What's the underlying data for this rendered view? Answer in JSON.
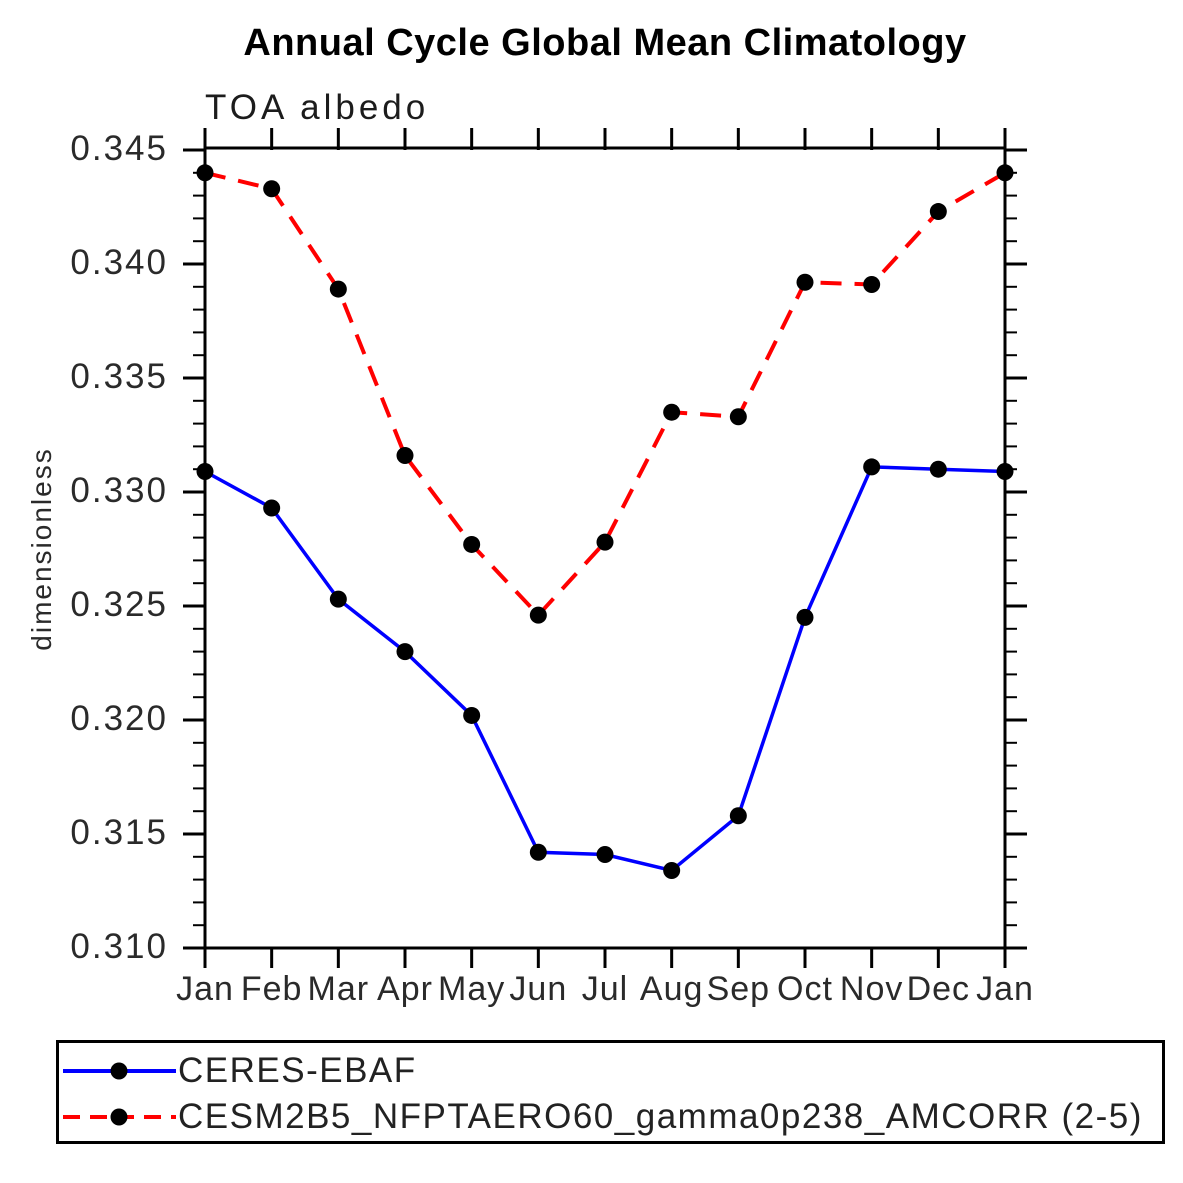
{
  "title": "Annual Cycle Global Mean Climatology",
  "subtitle": "TOA albedo",
  "chart_data": {
    "type": "line",
    "title": "Annual Cycle Global Mean Climatology",
    "subtitle": "TOA albedo",
    "xlabel": "",
    "ylabel": "dimensionless",
    "x_categories": [
      "Jan",
      "Feb",
      "Mar",
      "Apr",
      "May",
      "Jun",
      "Jul",
      "Aug",
      "Sep",
      "Oct",
      "Nov",
      "Dec",
      "Jan"
    ],
    "ylim": [
      0.31,
      0.345
    ],
    "y_major_step": 0.005,
    "y_minor_step": 0.001,
    "y_tick_labels": [
      "0.345",
      "0.340",
      "0.335",
      "0.330",
      "0.325",
      "0.320",
      "0.315",
      "0.310"
    ],
    "grid": false,
    "legend_position": "bottom",
    "marker": "filled-circle",
    "marker_color": "#000000",
    "series": [
      {
        "name": "CERES-EBAF",
        "color": "#0000ff",
        "line_style": "solid",
        "values": [
          0.3309,
          0.3293,
          0.3253,
          0.323,
          0.3202,
          0.3142,
          0.3141,
          0.3134,
          0.3158,
          0.3245,
          0.3311,
          0.331,
          0.3309
        ]
      },
      {
        "name": "CESM2B5_NFPTAERO60_gamma0p238_AMCORR (2-5)",
        "color": "#ff0000",
        "line_style": "dashed",
        "values": [
          0.344,
          0.3433,
          0.3389,
          0.3316,
          0.3277,
          0.3246,
          0.3278,
          0.3335,
          0.3333,
          0.3392,
          0.3391,
          0.3423,
          0.344
        ]
      }
    ]
  }
}
